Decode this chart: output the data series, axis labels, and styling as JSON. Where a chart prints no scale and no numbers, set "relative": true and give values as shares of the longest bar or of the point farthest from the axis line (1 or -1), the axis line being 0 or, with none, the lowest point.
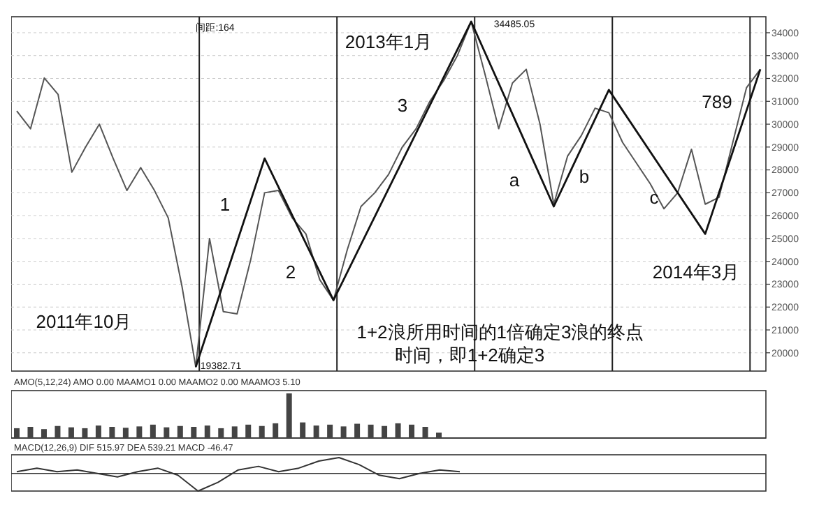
{
  "chart_data": [
    {
      "type": "line",
      "categories": [
        null,
        null,
        null,
        null,
        null,
        null,
        null,
        null,
        null,
        null,
        null,
        null,
        null,
        null,
        null,
        null,
        null,
        null,
        null,
        null,
        null,
        null,
        null,
        null,
        null,
        null,
        null,
        null,
        null,
        null,
        null,
        null,
        null,
        null,
        null,
        null,
        null,
        null,
        null,
        null,
        null,
        null,
        null,
        null,
        null,
        null,
        null,
        null,
        null,
        null,
        null,
        null,
        null,
        null,
        null
      ],
      "ylim": [
        19200,
        34700
      ],
      "yticks": [
        20000,
        21000,
        22000,
        23000,
        24000,
        25000,
        26000,
        27000,
        28000,
        29000,
        30000,
        31000,
        32000,
        33000,
        34000
      ],
      "tick_labels": "y",
      "grid": true,
      "marker": "none",
      "line_style": "solid",
      "series": [
        {
          "color": "#555555",
          "values": [
            30580,
            29800,
            32020,
            31300,
            27900,
            29000,
            30000,
            28500,
            27100,
            28100,
            27100,
            25900,
            22900,
            19382.71,
            25000,
            21800,
            21700,
            24100,
            27000,
            27100,
            25900,
            25200,
            23200,
            22300,
            24500,
            26400,
            27000,
            27800,
            29000,
            29800,
            31000,
            31900,
            33000,
            34485.05,
            32200,
            29800,
            31800,
            32400,
            30000,
            26500,
            28600,
            29500,
            30700,
            30500,
            29200,
            28300,
            27400,
            26300,
            27000,
            28900,
            26500,
            26800,
            29200,
            31600,
            32400
          ]
        },
        {
          "color": "#111111",
          "values": [
            null,
            null,
            null,
            null,
            null,
            null,
            null,
            null,
            null,
            null,
            null,
            null,
            null,
            19382.71,
            null,
            null,
            null,
            null,
            28500,
            null,
            null,
            null,
            null,
            22300,
            null,
            null,
            null,
            null,
            null,
            null,
            null,
            null,
            null,
            34485.05,
            null,
            null,
            null,
            null,
            null,
            26400,
            null,
            null,
            null,
            31500,
            null,
            null,
            null,
            null,
            null,
            null,
            25200,
            null,
            null,
            null,
            32400
          ]
        }
      ],
      "annotations": [
        "间距:164",
        "34485.05",
        "19382.71",
        "2011年10月",
        "2013年1月",
        "1",
        "2",
        "3",
        "a",
        "b",
        "c",
        "789",
        "2014年3月",
        "1+2浪所用时间的1倍确定3浪的终点",
        "时间，即1+2确定3"
      ]
    },
    {
      "type": "bar",
      "relative": true,
      "title": "AMO(5,12,24) AMO 0.00 MAAMO1 0.00 MAAMO2 0.00 MAAMO3 5.10",
      "tick_labels": false,
      "color": "#444444",
      "categories": [
        null,
        null,
        null,
        null,
        null,
        null,
        null,
        null,
        null,
        null,
        null,
        null,
        null,
        null,
        null,
        null,
        null,
        null,
        null,
        null,
        null,
        null,
        null,
        null,
        null,
        null,
        null,
        null,
        null,
        null,
        null,
        null
      ],
      "values": [
        0.22,
        0.25,
        0.2,
        0.27,
        0.24,
        0.22,
        0.28,
        0.25,
        0.23,
        0.26,
        0.3,
        0.24,
        0.27,
        0.25,
        0.28,
        0.22,
        0.26,
        0.3,
        0.27,
        0.33,
        1,
        0.35,
        0.28,
        0.3,
        0.26,
        0.32,
        0.3,
        0.27,
        0.33,
        0.3,
        0.25,
        0.12
      ]
    },
    {
      "type": "line",
      "relative": true,
      "title": "MACD(12,26,9) DIF 515.97 DEA 539.21 MACD -46.47",
      "tick_labels": false,
      "categories": [
        null,
        null,
        null,
        null,
        null,
        null,
        null,
        null,
        null,
        null,
        null,
        null,
        null,
        null,
        null,
        null,
        null,
        null,
        null,
        null,
        null,
        null,
        null
      ],
      "series": [
        {
          "color": "#333333",
          "values": [
            0.1,
            0.3,
            0.1,
            0.2,
            0,
            -0.2,
            0.1,
            0.3,
            -0.1,
            -1,
            -0.5,
            0.2,
            0.4,
            0.1,
            0.3,
            0.7,
            0.9,
            0.5,
            -0.1,
            -0.3,
            0,
            0.2,
            0.1
          ]
        }
      ]
    }
  ]
}
